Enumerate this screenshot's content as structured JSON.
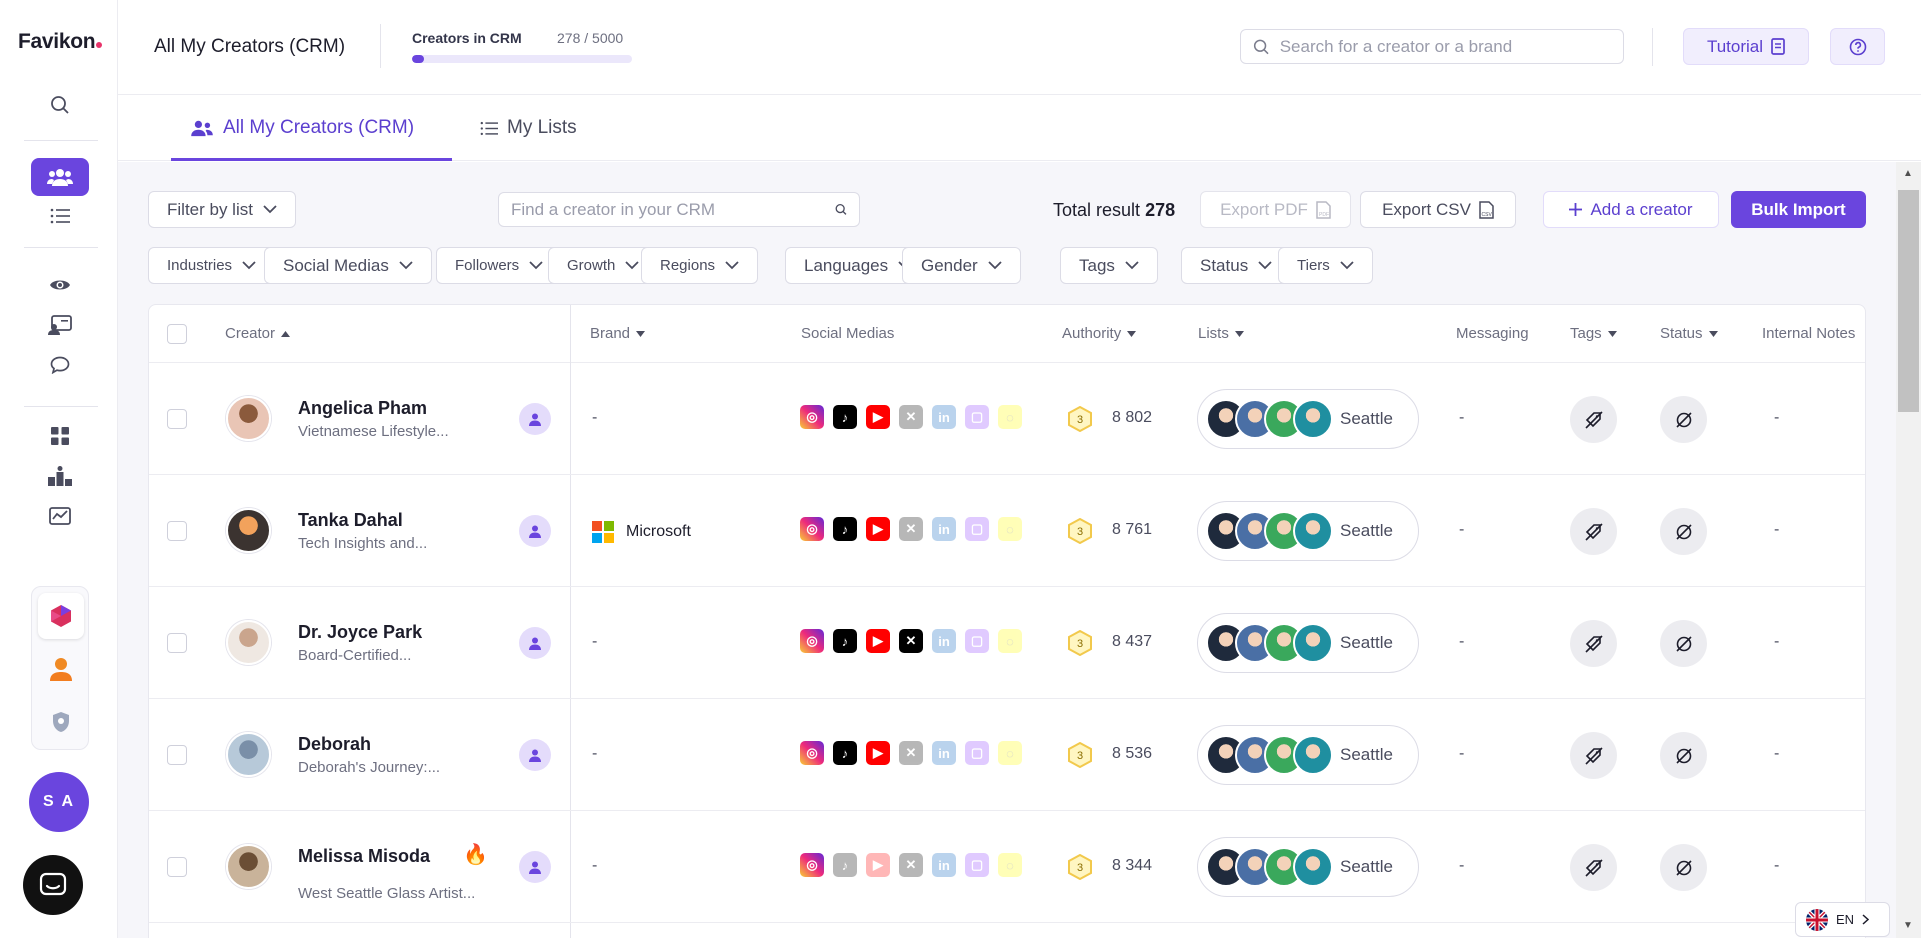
{
  "app": {
    "logo": "Favikon"
  },
  "header": {
    "title": "All My Creators (CRM)",
    "crm_label": "Creators in CRM",
    "crm_count": "278 / 5000",
    "crm_progress": 0.0556,
    "search_placeholder": "Search for a creator or a brand",
    "tutorial_label": "Tutorial"
  },
  "tabs": [
    {
      "label": "All My Creators (CRM)",
      "active": true
    },
    {
      "label": "My Lists",
      "active": false
    }
  ],
  "sidebar": {
    "user_initials": "S A",
    "icons": [
      "search-icon",
      "users-icon",
      "list-icon",
      "eye-icon",
      "id-card-icon",
      "chat-bubble-icon",
      "grid-icon",
      "podium-icon",
      "analytics-icon"
    ]
  },
  "toolbar": {
    "filter_by_list": "Filter by list",
    "crm_search_placeholder": "Find a creator in your CRM",
    "total_label": "Total result",
    "total_value": "278",
    "export_pdf": "Export PDF",
    "export_csv": "Export CSV",
    "add_creator": "Add a creator",
    "bulk_import": "Bulk Import"
  },
  "filters": [
    "Industries",
    "Social Medias",
    "Followers",
    "Growth",
    "Regions",
    "Languages",
    "Gender",
    "Tags",
    "Status",
    "Tiers"
  ],
  "table": {
    "columns": [
      "Creator",
      "Brand",
      "Social Medias",
      "Authority",
      "Lists",
      "Messaging",
      "Tags",
      "Status",
      "Internal Notes"
    ],
    "rows": [
      {
        "name": "Angelica Pham",
        "desc": "Vietnamese Lifestyle...",
        "brand": "-",
        "authority": "8 802",
        "list_city": "Seattle",
        "messaging": "-",
        "notes": "-",
        "x_active": false,
        "fire": false,
        "faded_video": false
      },
      {
        "name": "Tanka Dahal",
        "desc": "Tech Insights and...",
        "brand": "Microsoft",
        "authority": "8 761",
        "list_city": "Seattle",
        "messaging": "-",
        "notes": "-",
        "x_active": false,
        "fire": false,
        "faded_video": false
      },
      {
        "name": "Dr. Joyce Park",
        "desc": "Board-Certified...",
        "brand": "-",
        "authority": "8 437",
        "list_city": "Seattle",
        "messaging": "-",
        "notes": "-",
        "x_active": true,
        "fire": false,
        "faded_video": false
      },
      {
        "name": "Deborah",
        "desc": "Deborah's Journey:...",
        "brand": "-",
        "authority": "8 536",
        "list_city": "Seattle",
        "messaging": "-",
        "notes": "-",
        "x_active": false,
        "fire": false,
        "faded_video": false
      },
      {
        "name": "Melissa Misoda",
        "desc": "West Seattle Glass Artist...",
        "brand": "-",
        "authority": "8 344",
        "list_city": "Seattle",
        "messaging": "-",
        "notes": "-",
        "x_active": false,
        "fire": true,
        "faded_video": true
      }
    ],
    "authority_tier": "3"
  },
  "language": {
    "code": "EN"
  },
  "colors": {
    "accent": "#6a45de",
    "instagram": "#d6249f",
    "tiktok": "#000000",
    "youtube": "#ff0000",
    "linkedin": "#0a66c2"
  }
}
